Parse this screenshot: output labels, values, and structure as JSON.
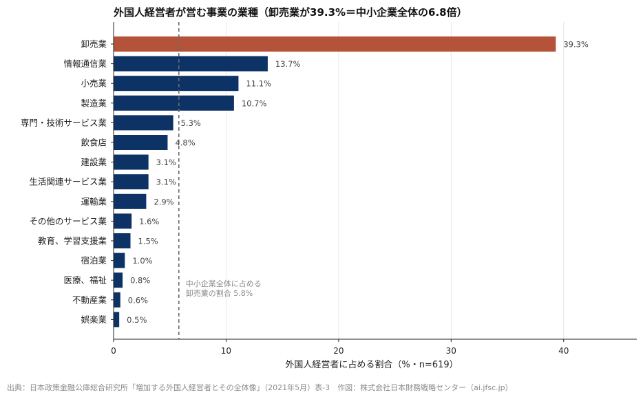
{
  "title": "外国人経営者が営む事業の業種（卸売業が39.3%＝中小企業全体の6.8倍）",
  "source": "出典：日本政策金融公庫総合研究所「増加する外国人経営者とその全体像」（2021年5月）表-3　作図：株式会社日本財務戦略センター（ai.jfsc.jp）",
  "colors": {
    "highlight": "#b5523a",
    "bar": "#0d3266",
    "grid": "#e6e6e6",
    "refline": "#6b6b6b",
    "annotation": "#8a8a8a"
  },
  "chart_data": {
    "type": "bar",
    "orientation": "horizontal",
    "title": "外国人経営者が営む事業の業種（卸売業が39.3%＝中小企業全体の6.8倍）",
    "xlabel": "外国人経営者に占める割合（%・n=619）",
    "ylabel": "",
    "xlim": [
      0,
      46.5
    ],
    "xticks": [
      0,
      10,
      20,
      30,
      40
    ],
    "grid": "vertical",
    "categories": [
      "卸売業",
      "情報通信業",
      "小売業",
      "製造業",
      "専門・技術サービス業",
      "飲食店",
      "建設業",
      "生活関連サービス業",
      "運輸業",
      "その他のサービス業",
      "教育、学習支援業",
      "宿泊業",
      "医療、福祉",
      "不動産業",
      "娯楽業"
    ],
    "values": [
      39.3,
      13.7,
      11.1,
      10.7,
      5.3,
      4.8,
      3.1,
      3.1,
      2.9,
      1.6,
      1.5,
      1.0,
      0.8,
      0.6,
      0.5
    ],
    "value_labels": [
      "39.3%",
      "13.7%",
      "11.1%",
      "10.7%",
      "5.3%",
      "4.8%",
      "3.1%",
      "3.1%",
      "2.9%",
      "1.6%",
      "1.5%",
      "1.0%",
      "0.8%",
      "0.6%",
      "0.5%"
    ],
    "highlight_index": 0,
    "reference_line": {
      "value": 5.8,
      "label_lines": [
        "中小企業全体に占める",
        "卸売業の割合 5.8%"
      ]
    }
  }
}
